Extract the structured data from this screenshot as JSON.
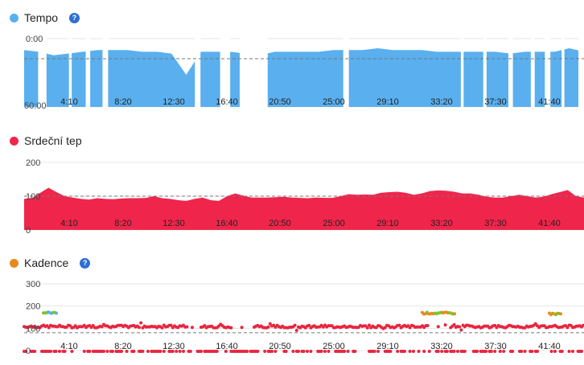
{
  "panels": {
    "tempo": {
      "title": "Tempo",
      "color": "#5aafee",
      "has_help": true,
      "y_labels": [
        "0:00",
        "50:00"
      ],
      "reference_label": "",
      "x_labels": [
        "4:10",
        "8:20",
        "12:30",
        "16:40",
        "20:50",
        "25:00",
        "29:10",
        "33:20",
        "37:30",
        "41:40"
      ]
    },
    "heart_rate": {
      "title": "Srdeční tep",
      "color": "#f0254b",
      "has_help": false,
      "y_labels": [
        "200",
        "100",
        "0"
      ],
      "x_labels": [
        "4:10",
        "8:20",
        "12:30",
        "16:40",
        "20:50",
        "25:00",
        "29:10",
        "33:20",
        "37:30",
        "41:40"
      ]
    },
    "cadence": {
      "title": "Kadence",
      "color": "#e8891c",
      "has_help": true,
      "y_labels": [
        "300",
        "200",
        "100",
        "0"
      ],
      "x_labels": [
        "4:10",
        "8:20",
        "12:30",
        "16:40",
        "20:50",
        "25:00",
        "29:10",
        "33:20",
        "37:30",
        "41:40"
      ]
    }
  },
  "chart_data": [
    {
      "type": "area",
      "x_unit": "min:sec",
      "x_ticks": [
        "4:10",
        "8:20",
        "12:30",
        "16:40",
        "20:50",
        "25:00",
        "29:10",
        "33:20",
        "37:30",
        "41:40"
      ],
      "y_ticks": [
        "0:00",
        "50:00"
      ],
      "y_inverted": true,
      "series": [
        {
          "values": [
            16,
            17,
            19,
            18,
            17,
            16,
            16,
            16,
            17,
            17,
            18,
            30,
            17,
            17,
            17,
            18,
            19,
            17,
            17,
            17,
            17,
            16,
            16,
            16,
            15,
            16,
            16,
            16,
            17,
            17,
            17,
            17,
            17,
            18,
            17,
            17,
            17,
            15,
            17
          ]
        }
      ],
      "gaps_fraction": [
        [
          0.025,
          0.04
        ],
        [
          0.08,
          0.085
        ],
        [
          0.11,
          0.118
        ],
        [
          0.14,
          0.15
        ],
        [
          0.305,
          0.315
        ],
        [
          0.35,
          0.368
        ],
        [
          0.385,
          0.435
        ],
        [
          0.57,
          0.58
        ],
        [
          0.78,
          0.785
        ],
        [
          0.82,
          0.826
        ],
        [
          0.865,
          0.873
        ],
        [
          0.905,
          0.912
        ],
        [
          0.93,
          0.94
        ],
        [
          0.96,
          0.965
        ],
        [
          0.99,
          1.0
        ]
      ]
    },
    {
      "type": "area",
      "x_unit": "min:sec",
      "x_ticks": [
        "4:10",
        "8:20",
        "12:30",
        "16:40",
        "20:50",
        "25:00",
        "29:10",
        "33:20",
        "37:30",
        "41:40"
      ],
      "y_range": [
        0,
        200
      ],
      "y_ticks": [
        "200",
        "100",
        "0"
      ],
      "series": [
        {
          "values": [
            92,
            95,
            110,
            125,
            112,
            100,
            96,
            92,
            90,
            94,
            92,
            91,
            93,
            94,
            94,
            95,
            100,
            94,
            92,
            88,
            86,
            92,
            96,
            88,
            86,
            100,
            108,
            102,
            96,
            96,
            96,
            97,
            98,
            96,
            95,
            94,
            96,
            95,
            95,
            100,
            106,
            104,
            105,
            104,
            110,
            112,
            113,
            110,
            104,
            108,
            115,
            117,
            116,
            113,
            108,
            108,
            104,
            98,
            96,
            96,
            100,
            104,
            100,
            96,
            98,
            106,
            112,
            118,
            100,
            96
          ]
        }
      ],
      "reference_value": 100
    },
    {
      "type": "scatter",
      "x_unit": "min:sec",
      "x_ticks": [
        "4:10",
        "8:20",
        "12:30",
        "16:40",
        "20:50",
        "25:00",
        "29:10",
        "33:20",
        "37:30",
        "41:40"
      ],
      "y_range": [
        0,
        300
      ],
      "y_ticks": [
        "300",
        "200",
        "100",
        "0"
      ],
      "reference_value": 80,
      "series": [
        {
          "color": "#e8253f",
          "values_main": 110,
          "values_low": 0
        },
        {
          "color": "#e8891c",
          "values_cluster": 165
        },
        {
          "color": "#7dc42c",
          "values_cluster": 170
        },
        {
          "color": "#5aafee",
          "values_cluster": 168
        }
      ]
    }
  ]
}
